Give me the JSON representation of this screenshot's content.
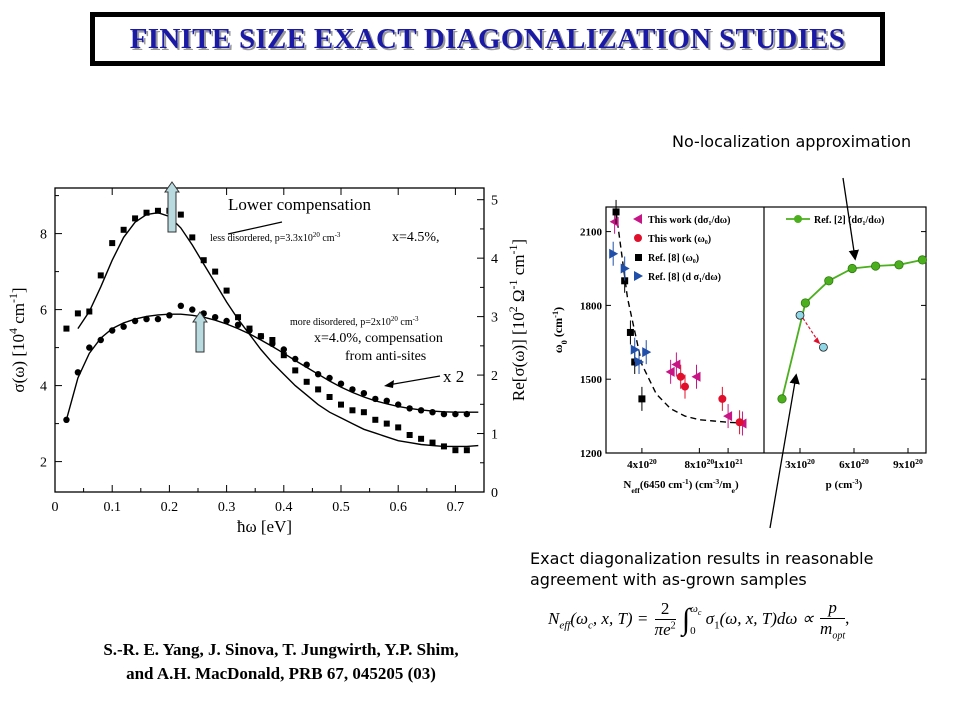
{
  "title": "FINITE SIZE EXACT DIAGONALIZATION STUDIES",
  "citation": {
    "line1": "S.-R. E. Yang, J. Sinova, T. Jungwirth, Y.P. Shim,",
    "line2": "and A.H. MacDonald, PRB 67, 045205 (03)"
  },
  "notes": {
    "no_localization": "No-localization approximation",
    "exact_diag_line1": "Exact diagonalization results in reasonable",
    "exact_diag_line2": "agreement with as-grown samples"
  },
  "formula": {
    "lhs": "N",
    "lhs_sub": "eff",
    "args": "(ω",
    "args_sub": "c",
    "args_rest": ", x, T) =",
    "frac_num": "2",
    "frac_den": "πe",
    "frac_den_sup": "2",
    "int_upper": "ω",
    "int_upper_sub": "c",
    "int_lower": "0",
    "integrand": "σ",
    "integrand_sub": "1",
    "integrand_rest": "(ω, x, T)dω ∝",
    "rhs_num": "p",
    "rhs_den": "m",
    "rhs_den_sub": "opt"
  },
  "chart_data": [
    {
      "type": "scatter",
      "xlabel": "ħω [eV]",
      "ylabel_left": "σ(ω) [10",
      "ylabel_left_sup": "4",
      "ylabel_left_unit": " cm",
      "ylabel_left_unit_sup": "-1",
      "ylabel_left_end": "]",
      "ylabel_right": "Re[σ(ω)] [10",
      "ylabel_right_sup": "2",
      "ylabel_right_unit": " Ω",
      "ylabel_right_unit_sup": "-1",
      "ylabel_right_unit2": " cm",
      "ylabel_right_unit2_sup": "-1",
      "ylabel_right_end": "]",
      "xlim": [
        0,
        0.75
      ],
      "ylim_left": [
        1.2,
        9.2
      ],
      "ylim_right": [
        0,
        5.2
      ],
      "x_ticks": [
        "0",
        "0.1",
        "0.2",
        "0.3",
        "0.4",
        "0.5",
        "0.6",
        "0.7"
      ],
      "y_ticks_left": [
        "2",
        "4",
        "6",
        "8"
      ],
      "y_ticks_right": [
        "0",
        "1",
        "2",
        "3",
        "4",
        "5"
      ],
      "annotations": {
        "lower_compensation": "Lower compensation",
        "less_disordered": "less disordered, p=3.3x10",
        "less_disordered_sup": "20",
        "less_disordered_unit": " cm",
        "less_disordered_unit_sup": "-3",
        "x45": "x=4.5%,",
        "more_disordered": "more disordered, p=2x10",
        "more_disordered_sup": "20",
        "more_disordered_unit": " cm",
        "more_disordered_unit_sup": "-3",
        "x40_line1": "x=4.0%, compensation",
        "x40_line2": "from anti-sites",
        "x2": "x 2"
      },
      "series": [
        {
          "marker": "square",
          "x": [
            0.02,
            0.04,
            0.06,
            0.08,
            0.1,
            0.12,
            0.14,
            0.16,
            0.18,
            0.2,
            0.22,
            0.24,
            0.26,
            0.28,
            0.3,
            0.32,
            0.34,
            0.36,
            0.38,
            0.4,
            0.42,
            0.44,
            0.46,
            0.48,
            0.5,
            0.52,
            0.54,
            0.56,
            0.58,
            0.6,
            0.62,
            0.64,
            0.66,
            0.68,
            0.7,
            0.72
          ],
          "y": [
            5.5,
            5.9,
            5.95,
            6.9,
            7.75,
            8.1,
            8.4,
            8.55,
            8.6,
            8.6,
            8.5,
            7.9,
            7.3,
            7.0,
            6.5,
            5.8,
            5.5,
            5.3,
            5.2,
            4.8,
            4.4,
            4.1,
            3.9,
            3.7,
            3.5,
            3.35,
            3.3,
            3.1,
            3.0,
            2.9,
            2.7,
            2.6,
            2.5,
            2.4,
            2.3,
            2.3
          ]
        },
        {
          "marker": "circle",
          "x": [
            0.02,
            0.04,
            0.06,
            0.08,
            0.1,
            0.12,
            0.14,
            0.16,
            0.18,
            0.2,
            0.22,
            0.24,
            0.26,
            0.28,
            0.3,
            0.32,
            0.34,
            0.36,
            0.38,
            0.4,
            0.42,
            0.44,
            0.46,
            0.48,
            0.5,
            0.52,
            0.54,
            0.56,
            0.58,
            0.6,
            0.62,
            0.64,
            0.66,
            0.68,
            0.7,
            0.72
          ],
          "y": [
            3.1,
            4.35,
            5.0,
            5.2,
            5.45,
            5.55,
            5.7,
            5.75,
            5.75,
            5.85,
            6.1,
            6.0,
            5.9,
            5.8,
            5.7,
            5.6,
            5.45,
            5.3,
            5.1,
            4.95,
            4.7,
            4.55,
            4.3,
            4.2,
            4.05,
            3.9,
            3.8,
            3.65,
            3.6,
            3.5,
            3.4,
            3.35,
            3.3,
            3.25,
            3.25,
            3.25
          ]
        }
      ],
      "fit_curves": [
        {
          "x": [
            0.04,
            0.06,
            0.08,
            0.1,
            0.12,
            0.14,
            0.16,
            0.18,
            0.2,
            0.22,
            0.24,
            0.26,
            0.28,
            0.3,
            0.32,
            0.34,
            0.36,
            0.38,
            0.4,
            0.42,
            0.44,
            0.46,
            0.48,
            0.5,
            0.52,
            0.54,
            0.56,
            0.58,
            0.6,
            0.62,
            0.64,
            0.66,
            0.68,
            0.7,
            0.72,
            0.74
          ],
          "y": [
            5.5,
            5.95,
            6.6,
            7.3,
            7.9,
            8.3,
            8.5,
            8.55,
            8.45,
            8.15,
            7.7,
            7.2,
            6.7,
            6.2,
            5.75,
            5.35,
            4.95,
            4.6,
            4.3,
            4.0,
            3.75,
            3.5,
            3.3,
            3.15,
            3.0,
            2.85,
            2.75,
            2.65,
            2.55,
            2.5,
            2.45,
            2.42,
            2.4,
            2.4,
            2.4,
            2.42
          ]
        },
        {
          "x": [
            0.02,
            0.04,
            0.06,
            0.08,
            0.1,
            0.12,
            0.14,
            0.16,
            0.18,
            0.2,
            0.22,
            0.24,
            0.26,
            0.28,
            0.3,
            0.32,
            0.34,
            0.36,
            0.38,
            0.4,
            0.42,
            0.44,
            0.46,
            0.48,
            0.5,
            0.52,
            0.54,
            0.56,
            0.58,
            0.6,
            0.62,
            0.64,
            0.66,
            0.68,
            0.7,
            0.72,
            0.74
          ],
          "y": [
            3.1,
            4.2,
            4.85,
            5.25,
            5.5,
            5.65,
            5.75,
            5.82,
            5.86,
            5.88,
            5.88,
            5.85,
            5.8,
            5.72,
            5.62,
            5.5,
            5.36,
            5.2,
            5.03,
            4.85,
            4.66,
            4.48,
            4.3,
            4.12,
            3.96,
            3.82,
            3.7,
            3.6,
            3.52,
            3.45,
            3.4,
            3.36,
            3.33,
            3.31,
            3.3,
            3.3,
            3.3
          ]
        }
      ]
    },
    {
      "type": "scatter",
      "panel": "left",
      "xlabel": "N",
      "xlabel_sub": "eff",
      "xlabel_rest": "(6450 cm",
      "xlabel_rest_sup": "-1",
      "xlabel_rest2": ") (cm",
      "xlabel_rest2_sup": "-3",
      "xlabel_rest3": "/m",
      "xlabel_rest3_sub": "e",
      "xlabel_end": ")",
      "ylabel": "ω",
      "ylabel_sub": "0",
      "ylabel_rest": " (cm",
      "ylabel_rest_sup": "-1",
      "ylabel_end": ")",
      "xlim": [
        1.5e+20,
        1.25e+21
      ],
      "ylim": [
        1200,
        2200
      ],
      "x_ticks": [
        "4x10",
        "8x10",
        "1x10"
      ],
      "x_ticks_sup": [
        "20",
        "20",
        "21"
      ],
      "x_tick_values": [
        4e+20,
        8e+20,
        1e+21
      ],
      "y_ticks": [
        "1200",
        "1500",
        "1800",
        "2100"
      ],
      "y_tick_values": [
        1200,
        1500,
        1800,
        2100
      ],
      "legend": [
        "This work (dσ₁/dω)",
        "This work (ω₀)",
        "Ref.  [8] (ω₀)",
        "Ref. [8] (d σ₁/dω)"
      ],
      "series": [
        {
          "name": "This work (dσ₁/dω)",
          "marker": "triangle-left",
          "color": "#c71585",
          "x": [
            2.1e+20,
            6e+20,
            6.4e+20,
            7.8e+20,
            1e+21,
            1.1e+21
          ],
          "y": [
            2140,
            1530,
            1560,
            1510,
            1350,
            1320
          ]
        },
        {
          "name": "This work (ω₀)",
          "marker": "circle",
          "color": "#e0102c",
          "x": [
            6.7e+20,
            7e+20,
            9.6e+20,
            1.08e+21
          ],
          "y": [
            1510,
            1470,
            1420,
            1325
          ]
        },
        {
          "name": "Ref.  [8] (ω₀)",
          "marker": "square",
          "color": "#000000",
          "x": [
            2.2e+20,
            2.8e+20,
            3.2e+20,
            3.5e+20,
            4e+20
          ],
          "y": [
            2180,
            1900,
            1690,
            1570,
            1420
          ]
        },
        {
          "name": "Ref. [8] (d σ₁/dω)",
          "marker": "triangle-right",
          "color": "#1f4fa8",
          "x": [
            2e+20,
            2.8e+20,
            3.5e+20,
            3.8e+20,
            4.3e+20
          ],
          "y": [
            2010,
            1950,
            1620,
            1570,
            1610
          ]
        }
      ],
      "fit_curve": {
        "x": [
          2.2e+20,
          3e+20,
          4e+20,
          5e+20,
          6e+20,
          7e+20,
          8e+20,
          9e+20,
          1e+21,
          1.1e+21
        ],
        "y": [
          2180,
          1830,
          1560,
          1440,
          1380,
          1350,
          1335,
          1330,
          1325,
          1322
        ]
      }
    },
    {
      "type": "line",
      "panel": "right",
      "xlabel": "p (cm",
      "xlabel_sup": "-3",
      "xlabel_end": ")",
      "xlim": [
        1e+20,
        1e+21
      ],
      "ylim": [
        1200,
        2200
      ],
      "x_ticks": [
        "3x10",
        "6x10",
        "9x10"
      ],
      "x_ticks_sup": [
        "20",
        "20",
        "20"
      ],
      "x_tick_values": [
        3e+20,
        6e+20,
        9e+20
      ],
      "legend": [
        "Ref. [2] (dσ₁/dω)"
      ],
      "series": [
        {
          "name": "Ref. [2] (dσ₁/dω)",
          "color": "#4caf1e",
          "x": [
            2e+20,
            3.3e+20,
            4.6e+20,
            5.9e+20,
            7.2e+20,
            8.5e+20,
            9.8e+20
          ],
          "y": [
            1420,
            1810,
            1900,
            1950,
            1960,
            1965,
            1985
          ]
        }
      ],
      "extra_points": {
        "color": "#8fd6e6",
        "x": [
          3e+20,
          4.3e+20
        ],
        "y": [
          1760,
          1630
        ]
      }
    }
  ]
}
